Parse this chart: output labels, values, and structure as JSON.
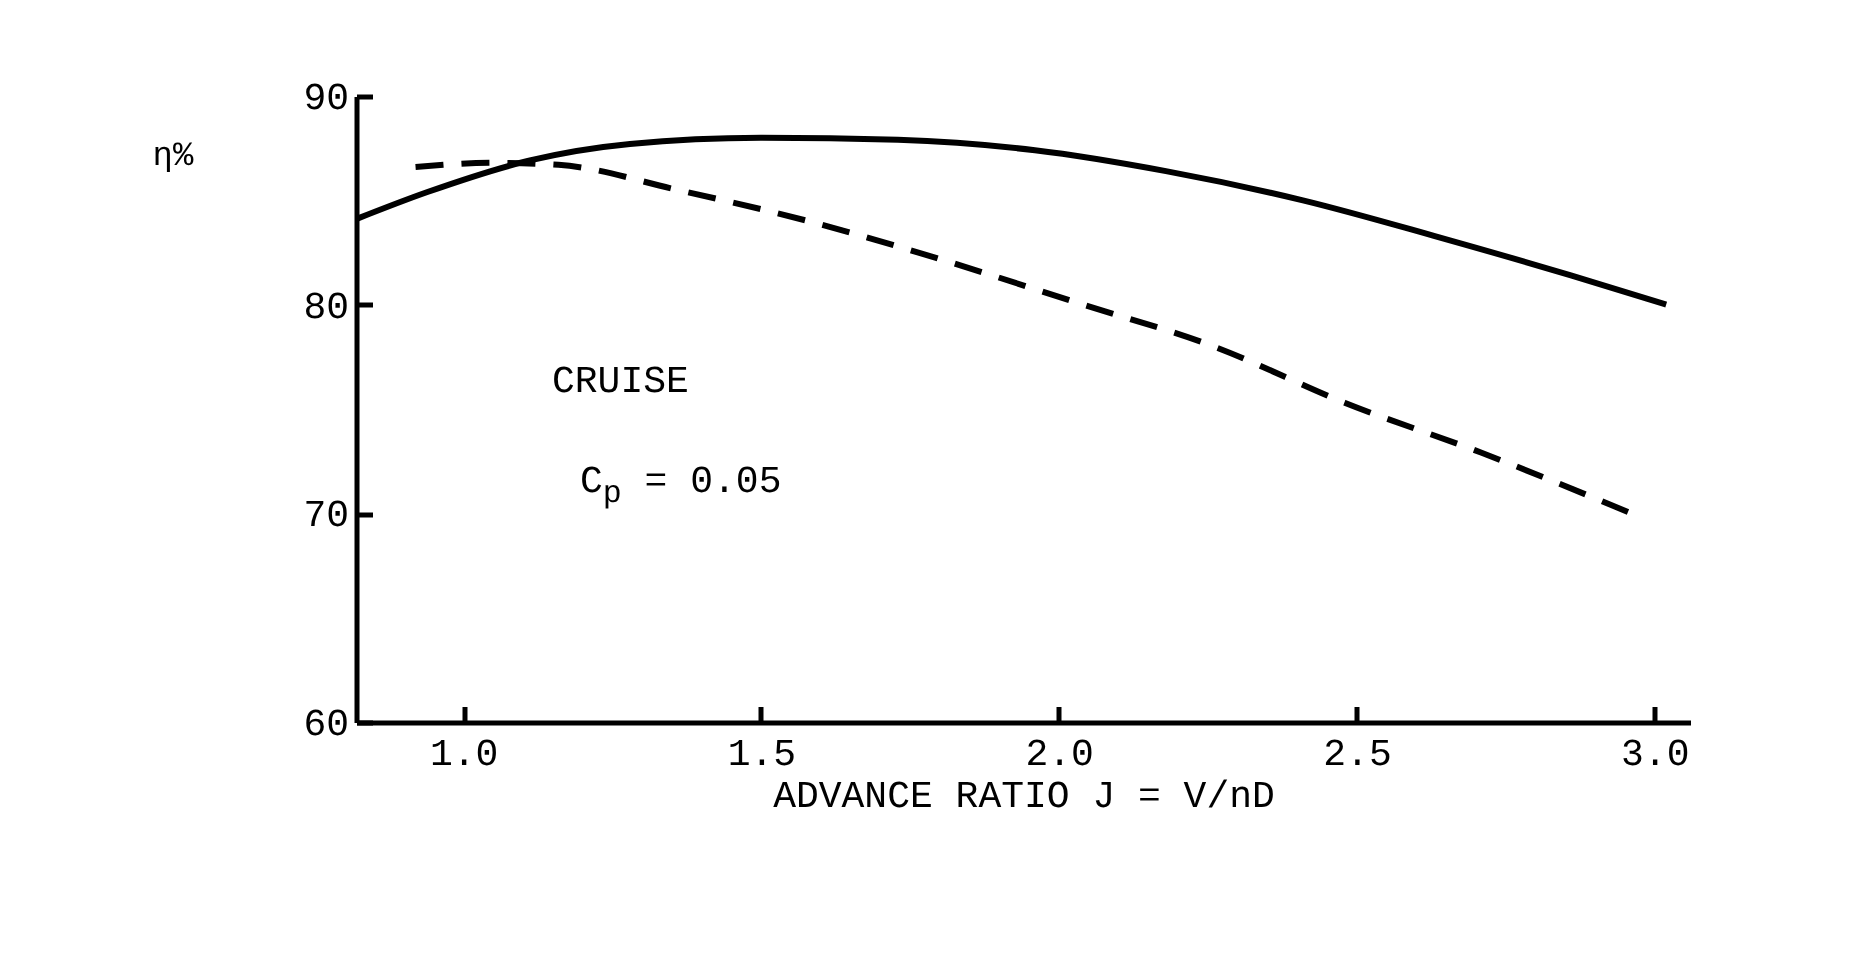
{
  "chart_data": {
    "type": "line",
    "xlabel": "ADVANCE RATIO  J = V/nD",
    "ylabel": "η%",
    "annotations": [
      "CRUISE",
      "C$_{p}$ = 0.05"
    ],
    "xlim": [
      0.82,
      3.06
    ],
    "ylim": [
      60,
      90
    ],
    "xticks": [
      {
        "value": 1,
        "label": "1.0"
      },
      {
        "value": 1.5,
        "label": "1.5"
      },
      {
        "value": 2,
        "label": "2.0"
      },
      {
        "value": 2.5,
        "label": "2.5"
      },
      {
        "value": 3,
        "label": "3.0"
      }
    ],
    "yticks": [
      60,
      70,
      80,
      90
    ],
    "grid": false,
    "marker": "none",
    "series": [
      {
        "color": "#000000",
        "line_style": "solid",
        "x": [
          0.82,
          0.94,
          1.11,
          1.28,
          1.5,
          1.73,
          1.96,
          2.18,
          2.41,
          2.63,
          2.86,
          3.02
        ],
        "values": [
          84.1,
          85.4,
          86.9,
          87.7,
          88.0,
          87.9,
          87.4,
          86.4,
          85.0,
          83.3,
          81.4,
          80.0
        ]
      },
      {
        "color": "#000000",
        "line_style": "dashed",
        "x": [
          0.92,
          1.05,
          1.16,
          1.36,
          1.58,
          1.81,
          2.03,
          2.26,
          2.48,
          2.71,
          2.97
        ],
        "values": [
          86.6,
          86.8,
          86.7,
          85.5,
          84.0,
          82.1,
          80.1,
          78.0,
          75.3,
          72.9,
          69.9
        ]
      }
    ]
  }
}
